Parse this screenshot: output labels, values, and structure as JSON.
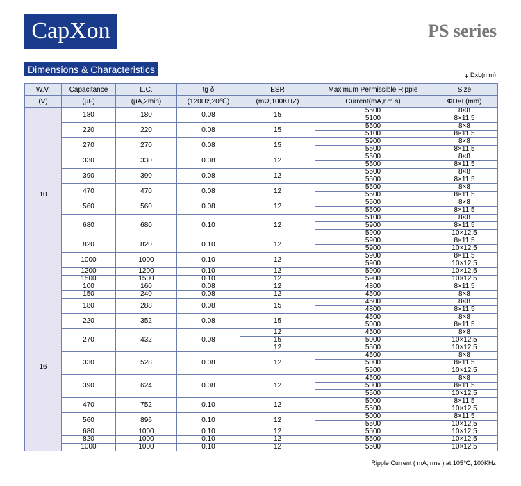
{
  "header": {
    "logo": "CapXon",
    "series": "PS series",
    "section": "Dimensions & Characteristics",
    "unit_note": "φ DxL(mm)"
  },
  "table": {
    "columns": [
      [
        "W.V.",
        "(V)"
      ],
      [
        "Capacitance",
        "(μF)"
      ],
      [
        "L.C.",
        "(μA,2min)"
      ],
      [
        "tg δ",
        "(120Hz,20℃)"
      ],
      [
        "ESR",
        "(mΩ,100KHZ)"
      ],
      [
        "Maximum Permissible Ripple",
        "Current(mA,r.m.s)"
      ],
      [
        "Size",
        "ΦD×L(mm)"
      ]
    ],
    "groups": [
      {
        "wv": "10",
        "rows": [
          {
            "cap": "180",
            "lc": "180",
            "tg": "0.08",
            "esr": [
              "15"
            ],
            "subs": [
              [
                "5500",
                "8×8"
              ],
              [
                "5100",
                "8×11.5"
              ]
            ]
          },
          {
            "cap": "220",
            "lc": "220",
            "tg": "0.08",
            "esr": [
              "15"
            ],
            "subs": [
              [
                "5500",
                "8×8"
              ],
              [
                "5100",
                "8×11.5"
              ]
            ]
          },
          {
            "cap": "270",
            "lc": "270",
            "tg": "0.08",
            "esr": [
              "15"
            ],
            "subs": [
              [
                "5900",
                "8×8"
              ],
              [
                "5500",
                "8×11.5"
              ]
            ]
          },
          {
            "cap": "330",
            "lc": "330",
            "tg": "0.08",
            "esr": [
              "12"
            ],
            "subs": [
              [
                "5500",
                "8×8"
              ],
              [
                "5500",
                "8×11.5"
              ]
            ]
          },
          {
            "cap": "390",
            "lc": "390",
            "tg": "0.08",
            "esr": [
              "12"
            ],
            "subs": [
              [
                "5500",
                "8×8"
              ],
              [
                "5500",
                "8×11.5"
              ]
            ]
          },
          {
            "cap": "470",
            "lc": "470",
            "tg": "0.08",
            "esr": [
              "12"
            ],
            "subs": [
              [
                "5500",
                "8×8"
              ],
              [
                "5500",
                "8×11.5"
              ]
            ]
          },
          {
            "cap": "560",
            "lc": "560",
            "tg": "0.08",
            "esr": [
              "12"
            ],
            "subs": [
              [
                "5500",
                "8×8"
              ],
              [
                "5500",
                "8×11.5"
              ]
            ]
          },
          {
            "cap": "680",
            "lc": "680",
            "tg": "0.10",
            "esr": [
              "12"
            ],
            "subs": [
              [
                "5100",
                "8×8"
              ],
              [
                "5900",
                "8×11.5"
              ],
              [
                "5900",
                "10×12.5"
              ]
            ]
          },
          {
            "cap": "820",
            "lc": "820",
            "tg": "0.10",
            "esr": [
              "12"
            ],
            "subs": [
              [
                "5900",
                "8×11.5"
              ],
              [
                "5900",
                "10×12.5"
              ]
            ]
          },
          {
            "cap": "1000",
            "lc": "1000",
            "tg": "0.10",
            "esr": [
              "12"
            ],
            "subs": [
              [
                "5900",
                "8×11.5"
              ],
              [
                "5900",
                "10×12.5"
              ]
            ]
          },
          {
            "cap": "1200",
            "lc": "1200",
            "tg": "0.10",
            "esr": [
              "12"
            ],
            "subs": [
              [
                "5900",
                "10×12.5"
              ]
            ]
          },
          {
            "cap": "1500",
            "lc": "1500",
            "tg": "0.10",
            "esr": [
              "12"
            ],
            "subs": [
              [
                "5900",
                "10×12.5"
              ]
            ]
          }
        ]
      },
      {
        "wv": "16",
        "rows": [
          {
            "cap": "100",
            "lc": "160",
            "tg": "0.08",
            "esr": [
              "12"
            ],
            "subs": [
              [
                "4800",
                "8×11.5"
              ]
            ]
          },
          {
            "cap": "150",
            "lc": "240",
            "tg": "0.08",
            "esr": [
              "12"
            ],
            "subs": [
              [
                "4500",
                "8×8"
              ]
            ]
          },
          {
            "cap": "180",
            "lc": "288",
            "tg": "0.08",
            "esr": [
              "15"
            ],
            "subs": [
              [
                "4500",
                "8×8"
              ],
              [
                "4800",
                "8×11.5"
              ]
            ]
          },
          {
            "cap": "220",
            "lc": "352",
            "tg": "0.08",
            "esr": [
              "15"
            ],
            "subs": [
              [
                "4500",
                "8×8"
              ],
              [
                "5000",
                "8×11.5"
              ]
            ]
          },
          {
            "cap": "270",
            "lc": "432",
            "tg": "0.08",
            "esr": [
              "12",
              "15",
              "12"
            ],
            "subs": [
              [
                "4500",
                "8×8"
              ],
              [
                "5000",
                "10×12.5"
              ],
              [
                "5500",
                "10×12.5"
              ]
            ]
          },
          {
            "cap": "330",
            "lc": "528",
            "tg": "0.08",
            "esr": [
              "12"
            ],
            "subs": [
              [
                "4500",
                "8×8"
              ],
              [
                "5000",
                "8×11.5"
              ],
              [
                "5500",
                "10×12.5"
              ]
            ]
          },
          {
            "cap": "390",
            "lc": "624",
            "tg": "0.08",
            "esr": [
              "12"
            ],
            "subs": [
              [
                "4500",
                "8×8"
              ],
              [
                "5000",
                "8×11.5"
              ],
              [
                "5500",
                "10×12.5"
              ]
            ]
          },
          {
            "cap": "470",
            "lc": "752",
            "tg": "0.10",
            "esr": [
              "12"
            ],
            "subs": [
              [
                "5000",
                "8×11.5"
              ],
              [
                "5500",
                "10×12.5"
              ]
            ]
          },
          {
            "cap": "560",
            "lc": "896",
            "tg": "0.10",
            "esr": [
              "12"
            ],
            "subs": [
              [
                "5000",
                "8×11.5"
              ],
              [
                "5500",
                "10×12.5"
              ]
            ]
          },
          {
            "cap": "680",
            "lc": "1000",
            "tg": "0.10",
            "esr": [
              "12"
            ],
            "subs": [
              [
                "5500",
                "10×12.5"
              ]
            ]
          },
          {
            "cap": "820",
            "lc": "1000",
            "tg": "0.10",
            "esr": [
              "12"
            ],
            "subs": [
              [
                "5500",
                "10×12.5"
              ]
            ]
          },
          {
            "cap": "1000",
            "lc": "1000",
            "tg": "0.10",
            "esr": [
              "12"
            ],
            "subs": [
              [
                "5500",
                "10×12.5"
              ]
            ]
          }
        ]
      }
    ]
  },
  "footer": {
    "note": "Ripple Current ( mA, rms ) at 105℃, 100KHz"
  }
}
